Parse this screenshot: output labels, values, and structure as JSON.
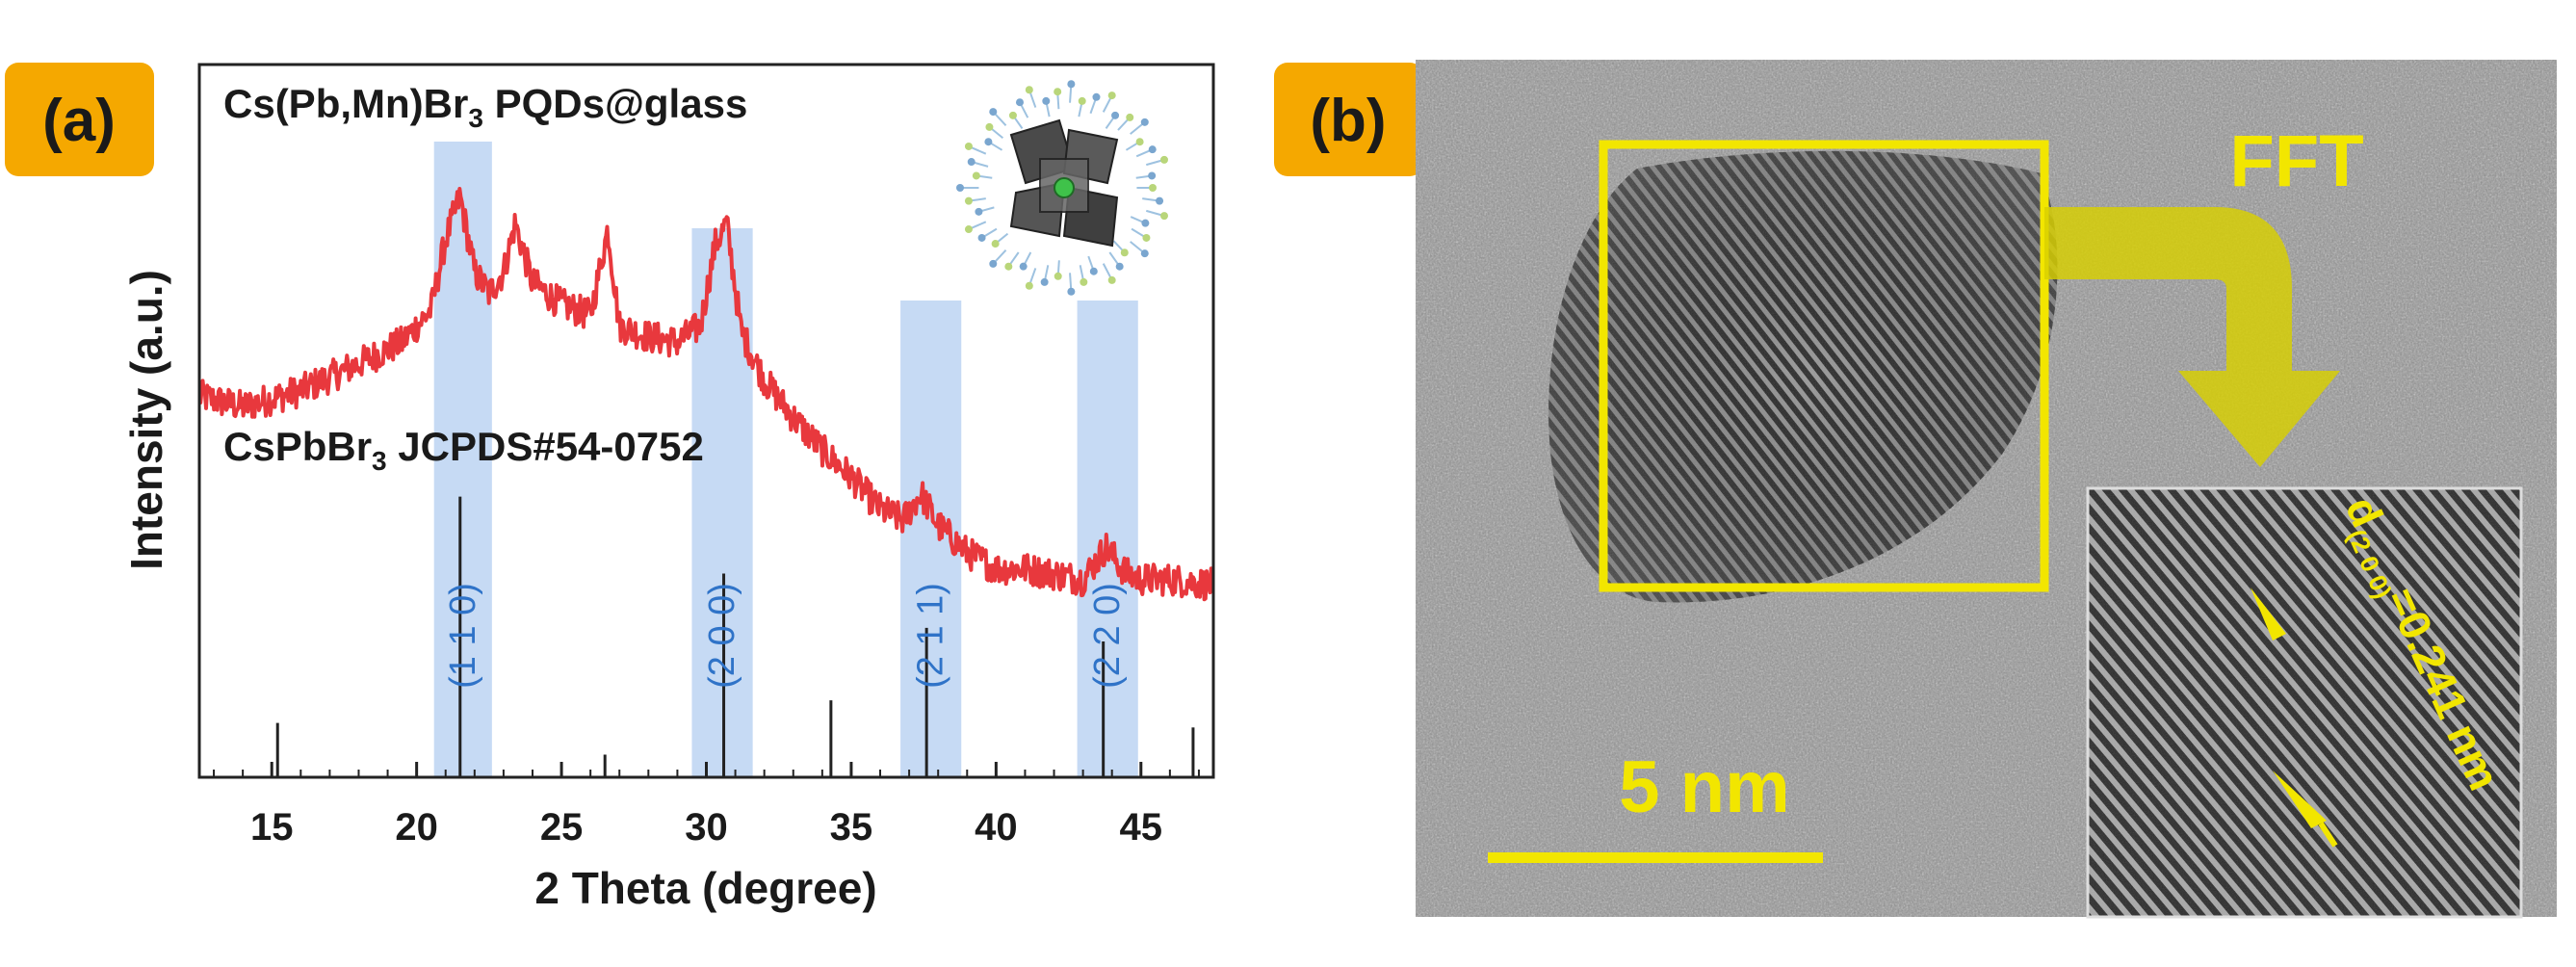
{
  "panel_a": {
    "label": "(a)",
    "sample_label": {
      "main": "Cs(Pb,Mn)Br",
      "sub": "3",
      "rest": " PQDs@glass"
    },
    "reference_label": {
      "main": "CsPbBr",
      "sub": "3",
      "rest": " JCPDS#54-0752"
    }
  },
  "panel_b": {
    "label": "(b)",
    "fft_label": "FFT",
    "scale_bar_label": "5 nm",
    "dspacing": {
      "main": "d",
      "sub": "(2 0 0)",
      "rest": "=0.241 nm"
    }
  },
  "colors": {
    "badge": "#f5a800",
    "xrd_curve": "#e8383d",
    "highlight_band": "#bcd4f2",
    "hkl_text": "#2f73c8",
    "annotation_yellow": "#f2e600"
  },
  "chart_data": {
    "type": "line",
    "title": "",
    "xlabel": "2 Theta (degree)",
    "ylabel": "Intensity (a.u.)",
    "xlim": [
      12.5,
      47.5
    ],
    "xticks": [
      15,
      20,
      25,
      30,
      35,
      40,
      45
    ],
    "grid": false,
    "series": [
      {
        "name": "Cs(Pb,Mn)Br3 PQDs@glass",
        "x": [
          12.5,
          14,
          16,
          18,
          19.5,
          20.5,
          21.0,
          21.5,
          22.0,
          22.5,
          23.0,
          23.4,
          24.0,
          25.0,
          26.0,
          26.6,
          27.0,
          28.0,
          29.0,
          29.8,
          30.3,
          30.7,
          31.2,
          32.0,
          33.0,
          34.0,
          35.0,
          36.0,
          36.8,
          37.4,
          38.0,
          39.0,
          40.0,
          41.0,
          42.0,
          43.0,
          43.8,
          44.5,
          45.0,
          46.0,
          47.5
        ],
        "y": [
          0.73,
          0.71,
          0.74,
          0.79,
          0.83,
          0.89,
          1.02,
          1.1,
          0.96,
          0.92,
          0.96,
          1.05,
          0.94,
          0.9,
          0.88,
          1.04,
          0.86,
          0.84,
          0.83,
          0.86,
          1.01,
          1.05,
          0.85,
          0.76,
          0.69,
          0.63,
          0.58,
          0.52,
          0.5,
          0.55,
          0.49,
          0.44,
          0.41,
          0.41,
          0.4,
          0.39,
          0.45,
          0.4,
          0.39,
          0.39,
          0.38
        ]
      },
      {
        "name": "CsPbBr3 JCPDS#54-0752",
        "type": "stick",
        "x": [
          15.2,
          21.5,
          26.5,
          30.6,
          34.3,
          37.6,
          43.7,
          46.8
        ],
        "y": [
          0.12,
          0.62,
          0.05,
          0.45,
          0.17,
          0.33,
          0.3,
          0.11
        ]
      }
    ],
    "highlight_bands": [
      {
        "x0": 20.6,
        "x1": 22.6,
        "hkl": "(1 1 0)"
      },
      {
        "x0": 29.5,
        "x1": 31.6,
        "hkl": "(2 0 0)"
      },
      {
        "x0": 36.7,
        "x1": 38.8,
        "hkl": "(2 1 1)"
      },
      {
        "x0": 42.8,
        "x1": 44.9,
        "hkl": "(2 2 0)"
      }
    ]
  }
}
